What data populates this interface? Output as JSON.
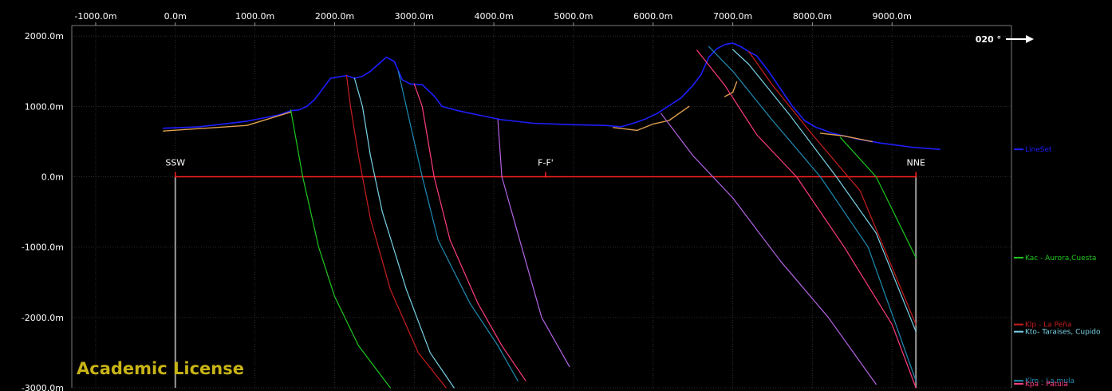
{
  "chart_data": {
    "type": "line",
    "title": "",
    "xlabel": "",
    "ylabel": "",
    "xlim": [
      -1300,
      10500
    ],
    "ylim": [
      -3000,
      2150
    ],
    "x_ticks": [
      -1000,
      0,
      1000,
      2000,
      3000,
      4000,
      5000,
      6000,
      7000,
      8000,
      9000
    ],
    "x_tick_labels": [
      "-1000.0m",
      "0.0m",
      "1000.0m",
      "2000.0m",
      "3000.0m",
      "4000.0m",
      "5000.0m",
      "6000.0m",
      "7000.0m",
      "8000.0m",
      "9000.0m"
    ],
    "y_ticks": [
      2000,
      1000,
      0,
      -1000,
      -2000,
      -3000
    ],
    "y_tick_labels": [
      "2000.0m",
      "1000.0m",
      "0.0m",
      "-1000.0m",
      "-2000.0m",
      "-3000.0m"
    ],
    "grid": true,
    "azimuth": {
      "label": "020 °",
      "arrow": "right"
    },
    "section": {
      "start_label": "SSW",
      "mid_label": "F-F'",
      "end_label": "NNE",
      "x_start": 0,
      "x_end": 9300,
      "x_mid": 4650,
      "elevation": 0,
      "color": "#ff2020",
      "post_color": "#9a9a9a"
    },
    "watermark": "Academic License",
    "series": [
      {
        "name": "LineSet",
        "color": "#1e1eff",
        "width": 1.6,
        "points": [
          [
            -150,
            690
          ],
          [
            300,
            710
          ],
          [
            900,
            790
          ],
          [
            1300,
            880
          ],
          [
            1450,
            940
          ],
          [
            1550,
            950
          ],
          [
            1650,
            1000
          ],
          [
            1750,
            1100
          ],
          [
            1850,
            1250
          ],
          [
            1950,
            1400
          ],
          [
            2050,
            1420
          ],
          [
            2150,
            1440
          ],
          [
            2250,
            1400
          ],
          [
            2350,
            1430
          ],
          [
            2450,
            1500
          ],
          [
            2550,
            1600
          ],
          [
            2650,
            1700
          ],
          [
            2750,
            1640
          ],
          [
            2850,
            1380
          ],
          [
            2950,
            1320
          ],
          [
            3100,
            1310
          ],
          [
            3250,
            1150
          ],
          [
            3350,
            1000
          ],
          [
            3550,
            940
          ],
          [
            3800,
            880
          ],
          [
            4100,
            810
          ],
          [
            4500,
            760
          ],
          [
            5000,
            740
          ],
          [
            5400,
            730
          ],
          [
            5600,
            710
          ],
          [
            5750,
            760
          ],
          [
            5900,
            820
          ],
          [
            6050,
            900
          ],
          [
            6200,
            1010
          ],
          [
            6350,
            1120
          ],
          [
            6500,
            1300
          ],
          [
            6600,
            1450
          ],
          [
            6700,
            1700
          ],
          [
            6800,
            1820
          ],
          [
            6900,
            1880
          ],
          [
            7000,
            1900
          ],
          [
            7100,
            1850
          ],
          [
            7200,
            1780
          ],
          [
            7300,
            1720
          ],
          [
            7450,
            1500
          ],
          [
            7600,
            1250
          ],
          [
            7750,
            1000
          ],
          [
            7900,
            800
          ],
          [
            8050,
            700
          ],
          [
            8250,
            620
          ],
          [
            8550,
            540
          ],
          [
            8850,
            480
          ],
          [
            9250,
            420
          ],
          [
            9600,
            390
          ]
        ]
      },
      {
        "name": "",
        "color": "#e0a050",
        "width": 1.4,
        "segments": [
          [
            [
              -150,
              650
            ],
            [
              900,
              730
            ],
            [
              1450,
              920
            ]
          ],
          [
            [
              5500,
              700
            ],
            [
              5800,
              660
            ],
            [
              6000,
              750
            ],
            [
              6200,
              800
            ],
            [
              6450,
              1000
            ]
          ],
          [
            [
              6900,
              1140
            ],
            [
              7000,
              1200
            ],
            [
              7050,
              1350
            ]
          ],
          [
            [
              8100,
              620
            ],
            [
              8400,
              580
            ],
            [
              8750,
              500
            ]
          ]
        ]
      },
      {
        "name": "Kac - Aurora,Cuesta",
        "color": "#1ec81e",
        "width": 1.2,
        "points": [
          [
            1450,
            950
          ],
          [
            1600,
            0
          ],
          [
            1800,
            -1000
          ],
          [
            2000,
            -1700
          ],
          [
            2300,
            -2400
          ],
          [
            2700,
            -3000
          ]
        ]
      },
      {
        "name": "",
        "color": "#1ec81e",
        "width": 1.2,
        "points": [
          [
            8350,
            560
          ],
          [
            8800,
            0
          ],
          [
            9300,
            -1150
          ]
        ]
      },
      {
        "name": "Klp - La Peña",
        "color": "#c81e1e",
        "width": 1.2,
        "points": [
          [
            2150,
            1440
          ],
          [
            2200,
            1000
          ],
          [
            2300,
            300
          ],
          [
            2450,
            -600
          ],
          [
            2700,
            -1600
          ],
          [
            3050,
            -2500
          ],
          [
            3400,
            -3000
          ]
        ]
      },
      {
        "name": "",
        "color": "#c81e1e",
        "width": 1.2,
        "points": [
          [
            7200,
            1780
          ],
          [
            7500,
            1300
          ],
          [
            8000,
            600
          ],
          [
            8600,
            -200
          ],
          [
            9300,
            -2100
          ]
        ]
      },
      {
        "name": "Kto- Taraises, Cupido",
        "color": "#78d2e6",
        "width": 1.2,
        "points": [
          [
            2250,
            1400
          ],
          [
            2350,
            1000
          ],
          [
            2450,
            300
          ],
          [
            2600,
            -500
          ],
          [
            2900,
            -1600
          ],
          [
            3200,
            -2500
          ],
          [
            3500,
            -3000
          ]
        ]
      },
      {
        "name": "",
        "color": "#78d2e6",
        "width": 1.2,
        "points": [
          [
            7000,
            1810
          ],
          [
            7200,
            1600
          ],
          [
            7700,
            900
          ],
          [
            8300,
            0
          ],
          [
            8800,
            -800
          ],
          [
            9300,
            -2200
          ]
        ]
      },
      {
        "name": "Klm - La mula",
        "color": "#1e8cb4",
        "width": 1.2,
        "points": [
          [
            2800,
            1500
          ],
          [
            2900,
            1000
          ],
          [
            3100,
            0
          ],
          [
            3300,
            -900
          ],
          [
            3700,
            -1800
          ],
          [
            4050,
            -2400
          ],
          [
            4300,
            -2900
          ]
        ]
      },
      {
        "name": "",
        "color": "#1e8cb4",
        "width": 1.2,
        "points": [
          [
            6700,
            1850
          ],
          [
            7000,
            1500
          ],
          [
            7500,
            800
          ],
          [
            8100,
            0
          ],
          [
            8700,
            -1000
          ],
          [
            9300,
            -2900
          ]
        ]
      },
      {
        "name": "Kpa - Patula",
        "color": "#ff3c82",
        "width": 1.2,
        "points": [
          [
            3000,
            1320
          ],
          [
            3100,
            1000
          ],
          [
            3250,
            0
          ],
          [
            3450,
            -900
          ],
          [
            3800,
            -1800
          ],
          [
            4100,
            -2400
          ],
          [
            4400,
            -2900
          ]
        ]
      },
      {
        "name": "",
        "color": "#ff3c82",
        "width": 1.2,
        "points": [
          [
            6550,
            1800
          ],
          [
            6900,
            1300
          ],
          [
            7300,
            600
          ],
          [
            7800,
            0
          ],
          [
            8400,
            -1000
          ],
          [
            9000,
            -2100
          ],
          [
            9300,
            -3000
          ]
        ]
      },
      {
        "name": "",
        "color": "#b464e6",
        "width": 1.2,
        "points": [
          [
            4050,
            810
          ],
          [
            4100,
            0
          ],
          [
            4350,
            -1000
          ],
          [
            4600,
            -2000
          ],
          [
            4950,
            -2700
          ]
        ]
      },
      {
        "name": "",
        "color": "#b464e6",
        "width": 1.2,
        "points": [
          [
            6100,
            900
          ],
          [
            6500,
            300
          ],
          [
            7000,
            -300
          ],
          [
            7600,
            -1200
          ],
          [
            8200,
            -2000
          ],
          [
            8800,
            -2950
          ]
        ]
      }
    ],
    "legend": {
      "placement": "right",
      "entries": [
        {
          "text": "LineSet",
          "color": "#1e1eff",
          "y": 390
        },
        {
          "text": "Kac - Aurora,Cuesta",
          "color": "#1ec81e",
          "y": -1150
        },
        {
          "text": "Klp - La Peña",
          "color": "#c81e1e",
          "y": -2100
        },
        {
          "text": "Kto- Taraises, Cupido",
          "color": "#78d2e6",
          "y": -2200
        },
        {
          "text": "Klm - La mula",
          "color": "#1e8cb4",
          "y": -2900
        },
        {
          "text": "Kpa - Patula",
          "color": "#ff3c82",
          "y": -3000
        }
      ]
    }
  }
}
